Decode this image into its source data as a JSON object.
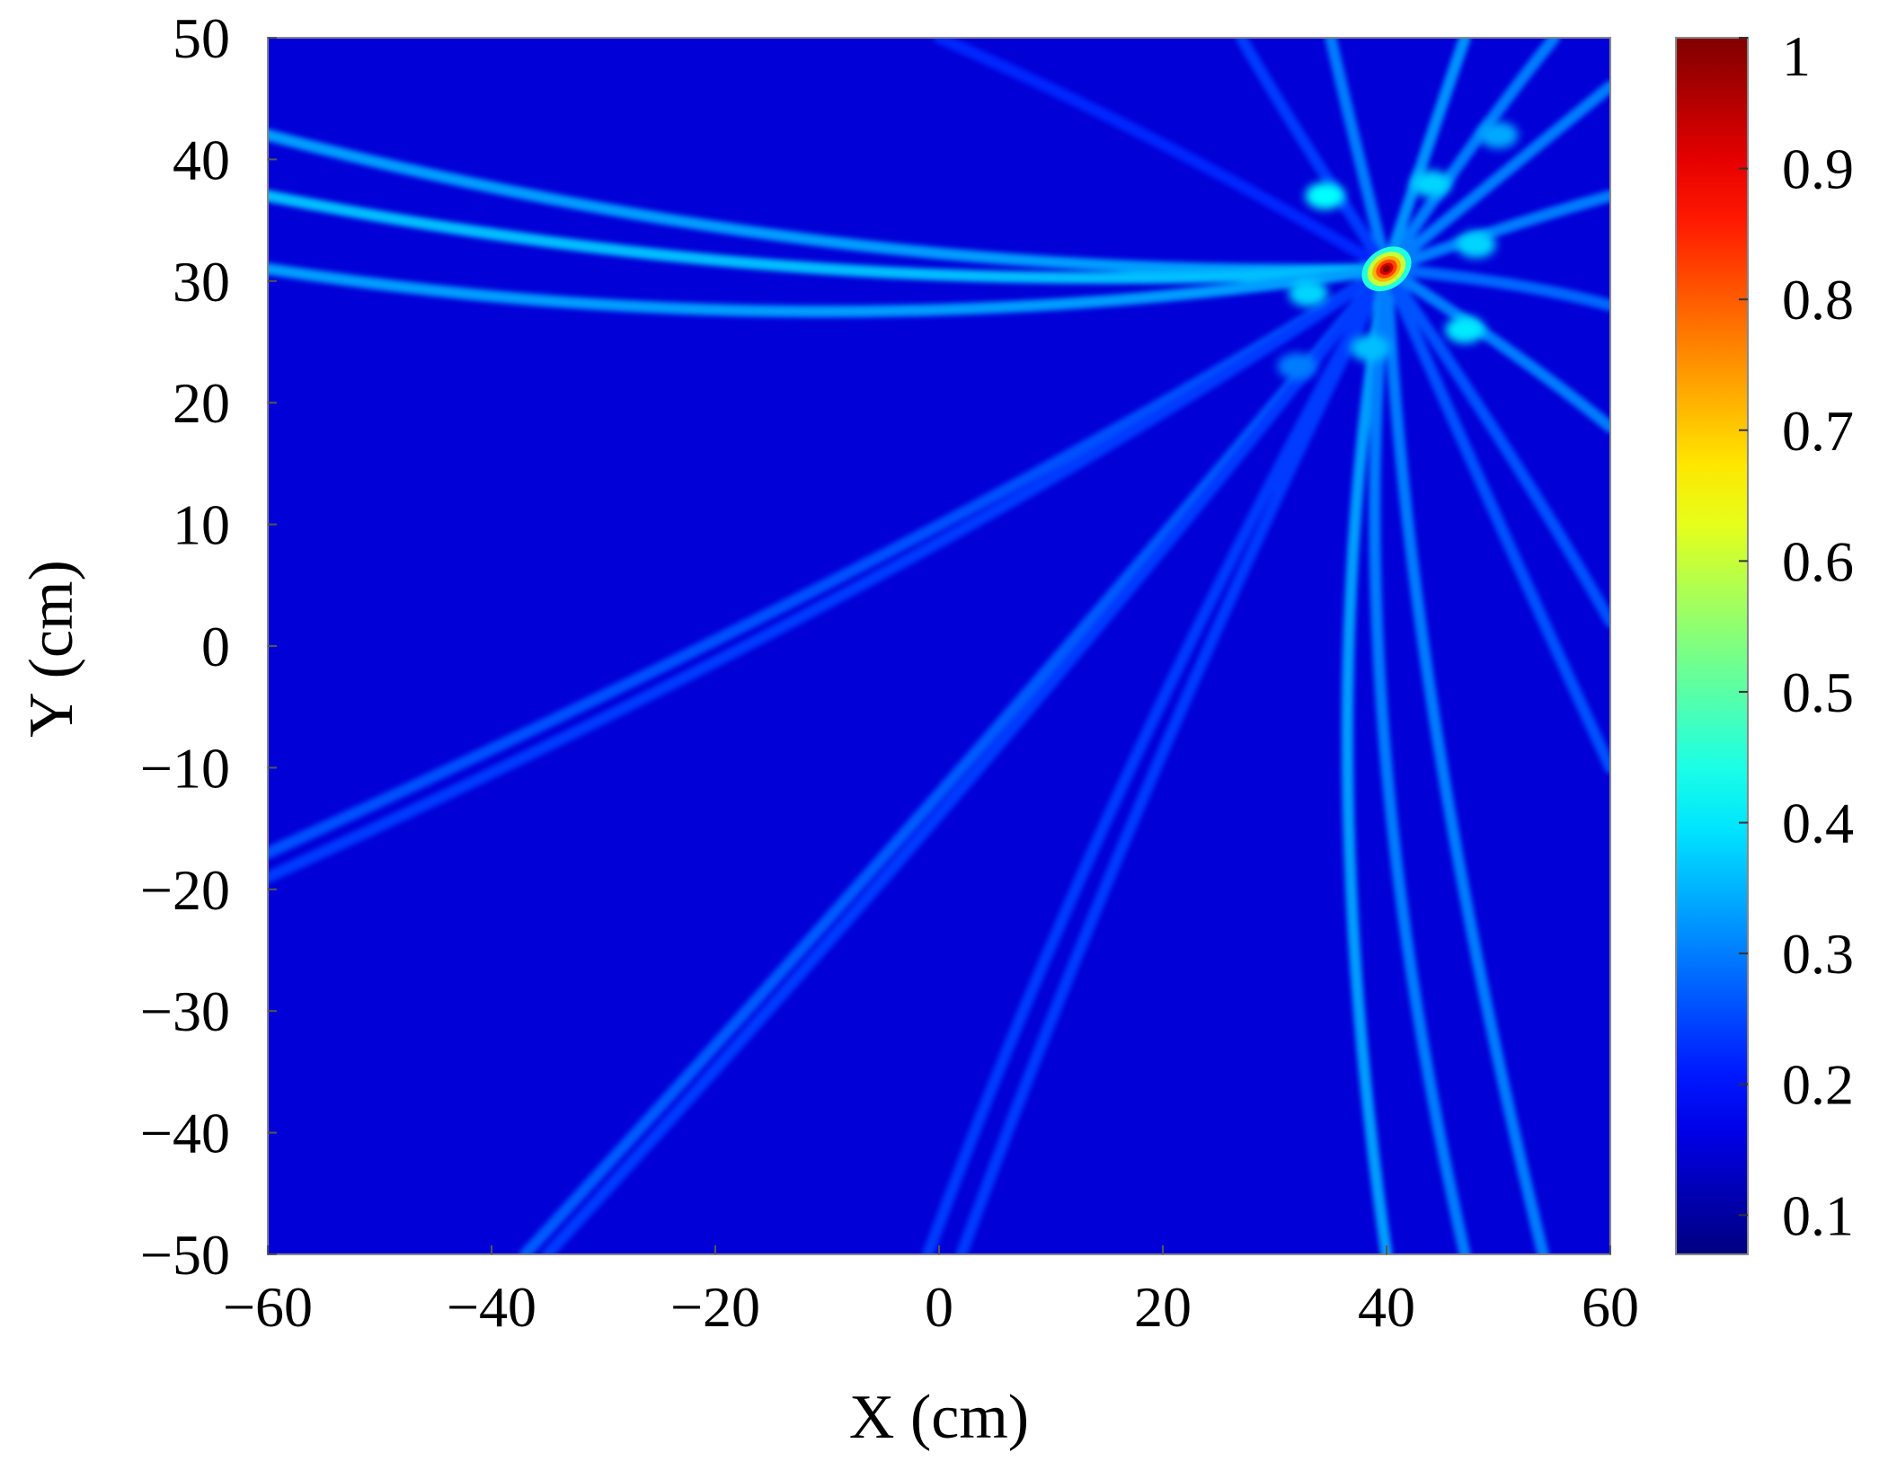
{
  "chart_data": {
    "type": "heatmap",
    "title": "",
    "xlabel": "X (cm)",
    "ylabel": "Y (cm)",
    "xlim": [
      -60,
      60
    ],
    "ylim": [
      -50,
      50
    ],
    "x_ticks": [
      -60,
      -40,
      -20,
      0,
      20,
      40,
      60
    ],
    "y_ticks": [
      50,
      40,
      30,
      20,
      10,
      0,
      -10,
      -20,
      -30,
      -40,
      -50
    ],
    "colorbar": {
      "colormap": "jet",
      "range": [
        0.07,
        1
      ],
      "ticks": [
        1,
        0.9,
        0.8,
        0.7,
        0.6,
        0.5,
        0.4,
        0.3,
        0.2,
        0.1
      ]
    },
    "background_value": 0.15,
    "peak": {
      "x": 40,
      "y": 31,
      "value": 1.0
    },
    "sidelobes": [
      {
        "x": 34.5,
        "y": 37,
        "value": 0.42
      },
      {
        "x": 44,
        "y": 38,
        "value": 0.38
      },
      {
        "x": 48,
        "y": 33,
        "value": 0.38
      },
      {
        "x": 33,
        "y": 29,
        "value": 0.38
      },
      {
        "x": 47,
        "y": 26,
        "value": 0.4
      },
      {
        "x": 38.5,
        "y": 24.5,
        "value": 0.36
      },
      {
        "x": 50,
        "y": 42,
        "value": 0.34
      },
      {
        "x": 32,
        "y": 23,
        "value": 0.3
      }
    ],
    "arcs": [
      {
        "from": [
          -60,
          42
        ],
        "via": [
          -10,
          30
        ],
        "to": [
          40,
          31
        ],
        "value": 0.33
      },
      {
        "from": [
          -60,
          37
        ],
        "via": [
          -10,
          28
        ],
        "to": [
          40,
          31
        ],
        "value": 0.36
      },
      {
        "from": [
          -60,
          31
        ],
        "via": [
          -10,
          24
        ],
        "to": [
          40,
          31
        ],
        "value": 0.33
      },
      {
        "from": [
          -60,
          -17
        ],
        "via": [
          0,
          8
        ],
        "to": [
          40,
          31
        ],
        "value": 0.26
      },
      {
        "from": [
          -60,
          -19
        ],
        "via": [
          0,
          6
        ],
        "to": [
          40,
          31
        ],
        "value": 0.24
      },
      {
        "from": [
          -37,
          -50
        ],
        "via": [
          5,
          -8
        ],
        "to": [
          40,
          31
        ],
        "value": 0.27
      },
      {
        "from": [
          -35,
          -50
        ],
        "via": [
          7,
          -8
        ],
        "to": [
          40,
          31
        ],
        "value": 0.24
      },
      {
        "from": [
          -1,
          -50
        ],
        "via": [
          15,
          -10
        ],
        "to": [
          40,
          31
        ],
        "value": 0.24
      },
      {
        "from": [
          2,
          -50
        ],
        "via": [
          18,
          -10
        ],
        "to": [
          40,
          31
        ],
        "value": 0.24
      },
      {
        "from": [
          40,
          -50
        ],
        "via": [
          33,
          -5
        ],
        "to": [
          40,
          31
        ],
        "value": 0.33
      },
      {
        "from": [
          47,
          -50
        ],
        "via": [
          36,
          -5
        ],
        "to": [
          40,
          31
        ],
        "value": 0.3
      },
      {
        "from": [
          54,
          -50
        ],
        "via": [
          42,
          -5
        ],
        "to": [
          40,
          31
        ],
        "value": 0.3
      },
      {
        "from": [
          60,
          -10
        ],
        "via": [
          50,
          10
        ],
        "to": [
          40,
          31
        ],
        "value": 0.26
      },
      {
        "from": [
          60,
          2
        ],
        "via": [
          52,
          15
        ],
        "to": [
          40,
          31
        ],
        "value": 0.26
      },
      {
        "from": [
          60,
          18
        ],
        "via": [
          52,
          24
        ],
        "to": [
          40,
          31
        ],
        "value": 0.3
      },
      {
        "from": [
          60,
          28
        ],
        "via": [
          52,
          30
        ],
        "to": [
          40,
          31
        ],
        "value": 0.28
      },
      {
        "from": [
          60,
          37
        ],
        "via": [
          52,
          35
        ],
        "to": [
          40,
          31
        ],
        "value": 0.3
      },
      {
        "from": [
          60,
          46
        ],
        "via": [
          52,
          40
        ],
        "to": [
          40,
          31
        ],
        "value": 0.3
      },
      {
        "from": [
          55,
          50
        ],
        "via": [
          48,
          42
        ],
        "to": [
          40,
          31
        ],
        "value": 0.3
      },
      {
        "from": [
          47,
          50
        ],
        "via": [
          44,
          42
        ],
        "to": [
          40,
          31
        ],
        "value": 0.32
      },
      {
        "from": [
          35,
          50
        ],
        "via": [
          37,
          42
        ],
        "to": [
          40,
          31
        ],
        "value": 0.3
      },
      {
        "from": [
          27,
          50
        ],
        "via": [
          32,
          42
        ],
        "to": [
          40,
          31
        ],
        "value": 0.24
      },
      {
        "from": [
          0,
          50
        ],
        "via": [
          20,
          42
        ],
        "to": [
          40,
          31
        ],
        "value": 0.22
      }
    ]
  }
}
